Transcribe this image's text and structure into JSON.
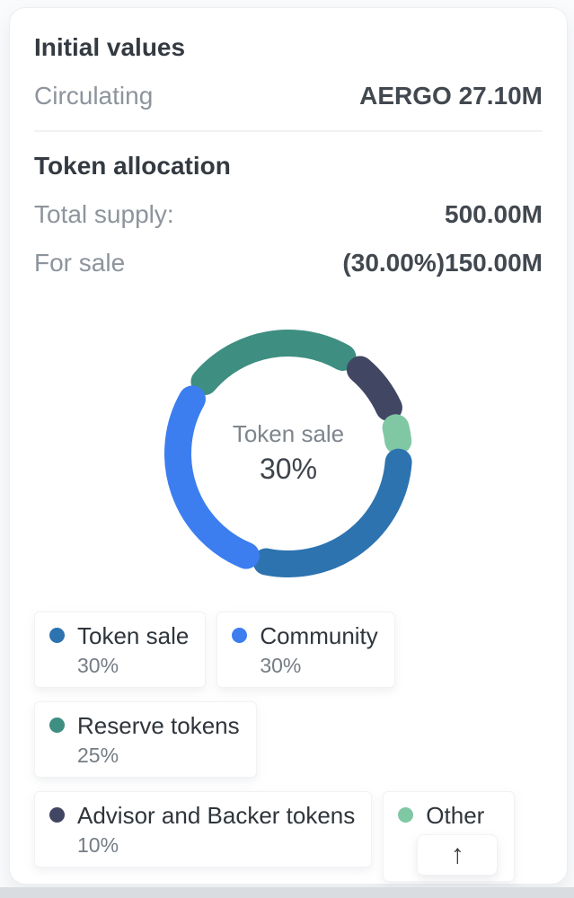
{
  "sections": {
    "initial": {
      "title": "Initial values",
      "rows": [
        {
          "label": "Circulating",
          "value": "AERGO 27.10M"
        }
      ]
    },
    "allocation": {
      "title": "Token allocation",
      "rows": [
        {
          "label": "Total supply:",
          "value": "500.00M"
        },
        {
          "label": "For sale",
          "value": "(30.00%)150.00M"
        }
      ]
    }
  },
  "chart_data": {
    "type": "pie",
    "subtype": "donut",
    "title": "Token allocation",
    "center_label": "Token sale",
    "center_value": "30%",
    "start_angle_deg": -55,
    "segment_gap_deg": 11,
    "legend_position": "bottom",
    "series": [
      {
        "name": "Reserve tokens",
        "value": 25,
        "color": "#3e8e82"
      },
      {
        "name": "Advisor and Backer tokens",
        "value": 10,
        "color": "#414663"
      },
      {
        "name": "Other",
        "value": 5,
        "color": "#7fc8a3"
      },
      {
        "name": "Token sale",
        "value": 30,
        "color": "#2d73b0"
      },
      {
        "name": "Community",
        "value": 30,
        "color": "#3c7ef0"
      }
    ]
  },
  "legend": {
    "items": [
      {
        "label": "Token sale",
        "percent": "30%",
        "color": "#2d73b0"
      },
      {
        "label": "Community",
        "percent": "30%",
        "color": "#3c7ef0"
      },
      {
        "label": "Reserve tokens",
        "percent": "25%",
        "color": "#3e8e82"
      },
      {
        "label": "Advisor and Backer tokens",
        "percent": "10%",
        "color": "#414663"
      },
      {
        "label": "Other",
        "color": "#7fc8a3",
        "expand_icon": "↑"
      }
    ]
  },
  "colors": {
    "heading": "#343a41",
    "muted_label": "#8d949c",
    "value": "#42484f",
    "page_strip": "#d9dde1"
  }
}
